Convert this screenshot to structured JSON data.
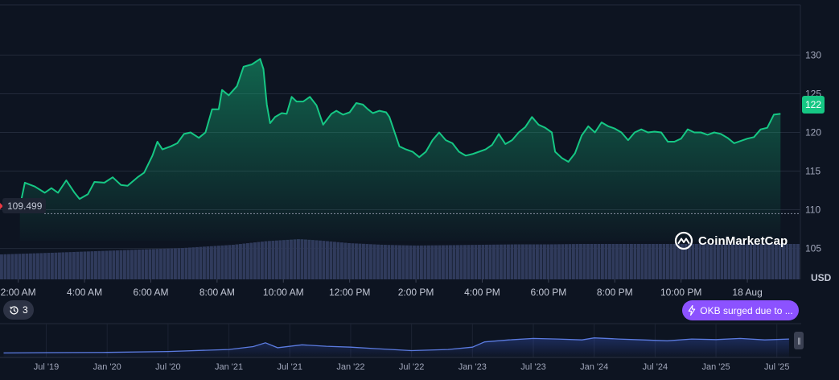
{
  "chart_data": {
    "type": "area",
    "title": "",
    "currency_label": "USD",
    "ylim": [
      101,
      136.5
    ],
    "y_ticks": [
      105,
      110,
      115,
      120,
      125,
      130
    ],
    "x_ticks": [
      "2:00 AM",
      "4:00 AM",
      "6:00 AM",
      "8:00 AM",
      "10:00 AM",
      "12:00 PM",
      "2:00 PM",
      "4:00 PM",
      "6:00 PM",
      "8:00 PM",
      "10:00 PM",
      "18 Aug"
    ],
    "x_hours": [
      2,
      4,
      6,
      8,
      10,
      12,
      14,
      16,
      18,
      20,
      22,
      24
    ],
    "xlim_hours": [
      1.45,
      25.6
    ],
    "start_price": 109.499,
    "current_price": 122,
    "current_price_label": "122",
    "start_price_label": "109.499",
    "series": [
      {
        "name": "Price (USD)",
        "points": [
          [
            2.05,
            110.4
          ],
          [
            2.2,
            113.5
          ],
          [
            2.5,
            113.0
          ],
          [
            2.8,
            112.2
          ],
          [
            3.0,
            112.8
          ],
          [
            3.2,
            112.2
          ],
          [
            3.45,
            113.8
          ],
          [
            3.7,
            112.2
          ],
          [
            3.85,
            111.4
          ],
          [
            4.1,
            112.0
          ],
          [
            4.3,
            113.6
          ],
          [
            4.6,
            113.5
          ],
          [
            4.85,
            114.2
          ],
          [
            5.1,
            113.2
          ],
          [
            5.3,
            113.1
          ],
          [
            5.6,
            114.2
          ],
          [
            5.8,
            114.8
          ],
          [
            6.05,
            117.0
          ],
          [
            6.2,
            118.8
          ],
          [
            6.35,
            117.8
          ],
          [
            6.6,
            118.2
          ],
          [
            6.8,
            118.6
          ],
          [
            7.0,
            119.8
          ],
          [
            7.2,
            120.0
          ],
          [
            7.45,
            119.3
          ],
          [
            7.65,
            120.0
          ],
          [
            7.85,
            123.0
          ],
          [
            8.05,
            123.0
          ],
          [
            8.15,
            125.5
          ],
          [
            8.35,
            124.8
          ],
          [
            8.6,
            126.0
          ],
          [
            8.8,
            128.5
          ],
          [
            9.05,
            128.8
          ],
          [
            9.3,
            129.5
          ],
          [
            9.4,
            128.2
          ],
          [
            9.5,
            123.6
          ],
          [
            9.6,
            121.2
          ],
          [
            9.75,
            122.0
          ],
          [
            9.95,
            122.5
          ],
          [
            10.1,
            122.4
          ],
          [
            10.25,
            124.6
          ],
          [
            10.4,
            124.0
          ],
          [
            10.6,
            124.0
          ],
          [
            10.8,
            124.6
          ],
          [
            11.0,
            123.5
          ],
          [
            11.2,
            121.0
          ],
          [
            11.45,
            122.4
          ],
          [
            11.6,
            122.8
          ],
          [
            11.8,
            122.3
          ],
          [
            12.0,
            122.6
          ],
          [
            12.2,
            123.8
          ],
          [
            12.4,
            123.6
          ],
          [
            12.55,
            123.0
          ],
          [
            12.7,
            122.5
          ],
          [
            12.9,
            122.8
          ],
          [
            13.1,
            122.6
          ],
          [
            13.2,
            122.0
          ],
          [
            13.5,
            118.2
          ],
          [
            13.7,
            117.8
          ],
          [
            13.9,
            117.5
          ],
          [
            14.1,
            116.8
          ],
          [
            14.3,
            117.5
          ],
          [
            14.5,
            119.0
          ],
          [
            14.7,
            120.0
          ],
          [
            14.9,
            119.0
          ],
          [
            15.1,
            118.6
          ],
          [
            15.3,
            117.5
          ],
          [
            15.5,
            117.0
          ],
          [
            15.7,
            117.2
          ],
          [
            15.9,
            117.5
          ],
          [
            16.1,
            117.8
          ],
          [
            16.3,
            118.4
          ],
          [
            16.5,
            119.8
          ],
          [
            16.7,
            118.5
          ],
          [
            16.9,
            119.0
          ],
          [
            17.1,
            120.0
          ],
          [
            17.3,
            120.7
          ],
          [
            17.5,
            122.0
          ],
          [
            17.7,
            121.0
          ],
          [
            17.9,
            120.6
          ],
          [
            18.1,
            120.0
          ],
          [
            18.2,
            117.5
          ],
          [
            18.4,
            116.7
          ],
          [
            18.6,
            116.2
          ],
          [
            18.8,
            117.3
          ],
          [
            19.0,
            119.6
          ],
          [
            19.2,
            120.8
          ],
          [
            19.4,
            120.0
          ],
          [
            19.6,
            121.3
          ],
          [
            19.8,
            120.8
          ],
          [
            20.0,
            120.5
          ],
          [
            20.2,
            120.0
          ],
          [
            20.4,
            119.0
          ],
          [
            20.6,
            120.0
          ],
          [
            20.8,
            120.4
          ],
          [
            21.0,
            120.0
          ],
          [
            21.2,
            120.1
          ],
          [
            21.4,
            120.0
          ],
          [
            21.6,
            118.8
          ],
          [
            21.8,
            118.8
          ],
          [
            22.0,
            119.2
          ],
          [
            22.2,
            120.4
          ],
          [
            22.4,
            120.0
          ],
          [
            22.6,
            120.0
          ],
          [
            22.8,
            119.7
          ],
          [
            23.0,
            120.0
          ],
          [
            23.2,
            119.8
          ],
          [
            23.4,
            119.3
          ],
          [
            23.6,
            118.6
          ],
          [
            23.8,
            118.9
          ],
          [
            24.0,
            119.2
          ],
          [
            24.2,
            119.4
          ],
          [
            24.4,
            120.4
          ],
          [
            24.6,
            120.6
          ],
          [
            24.8,
            122.3
          ],
          [
            25.0,
            122.4
          ]
        ]
      }
    ],
    "volume": {
      "name": "Volume",
      "points": [
        [
          1.5,
          0.62
        ],
        [
          3.0,
          0.66
        ],
        [
          5.0,
          0.72
        ],
        [
          7.0,
          0.78
        ],
        [
          8.5,
          0.86
        ],
        [
          9.5,
          0.95
        ],
        [
          10.5,
          1.0
        ],
        [
          11.2,
          0.96
        ],
        [
          12.0,
          0.9
        ],
        [
          13.0,
          0.86
        ],
        [
          14.0,
          0.84
        ],
        [
          15.0,
          0.85
        ],
        [
          16.0,
          0.86
        ],
        [
          17.0,
          0.87
        ],
        [
          18.0,
          0.87
        ],
        [
          19.0,
          0.88
        ],
        [
          20.0,
          0.88
        ],
        [
          21.0,
          0.88
        ],
        [
          22.0,
          0.88
        ],
        [
          23.0,
          0.88
        ],
        [
          24.0,
          0.88
        ],
        [
          25.2,
          0.88
        ]
      ]
    },
    "navigator": {
      "x_ticks": [
        "Jul '19",
        "Jan '20",
        "Jul '20",
        "Jan '21",
        "Jul '21",
        "Jan '22",
        "Jul '22",
        "Jan '23",
        "Jul '23",
        "Jan '24",
        "Jul '24",
        "Jan '25",
        "Jul '25"
      ],
      "x_years": [
        2019.5,
        2020.0,
        2020.5,
        2021.0,
        2021.5,
        2022.0,
        2022.5,
        2023.0,
        2023.5,
        2024.0,
        2024.5,
        2025.0,
        2025.5
      ],
      "xlim_years": [
        2019.12,
        2025.7
      ],
      "ylim": [
        0,
        1
      ],
      "points": [
        [
          2019.15,
          0.1
        ],
        [
          2019.5,
          0.11
        ],
        [
          2020.0,
          0.12
        ],
        [
          2020.5,
          0.15
        ],
        [
          2021.0,
          0.22
        ],
        [
          2021.2,
          0.32
        ],
        [
          2021.3,
          0.45
        ],
        [
          2021.4,
          0.28
        ],
        [
          2021.6,
          0.38
        ],
        [
          2021.8,
          0.33
        ],
        [
          2022.0,
          0.3
        ],
        [
          2022.2,
          0.25
        ],
        [
          2022.5,
          0.18
        ],
        [
          2022.8,
          0.22
        ],
        [
          2023.0,
          0.3
        ],
        [
          2023.1,
          0.48
        ],
        [
          2023.3,
          0.55
        ],
        [
          2023.5,
          0.6
        ],
        [
          2023.7,
          0.58
        ],
        [
          2023.9,
          0.55
        ],
        [
          2024.0,
          0.62
        ],
        [
          2024.2,
          0.58
        ],
        [
          2024.4,
          0.55
        ],
        [
          2024.6,
          0.52
        ],
        [
          2024.8,
          0.58
        ],
        [
          2025.0,
          0.56
        ],
        [
          2025.2,
          0.6
        ],
        [
          2025.4,
          0.55
        ],
        [
          2025.6,
          0.58
        ]
      ]
    }
  },
  "branding": {
    "logo_text": "CoinMarketCap"
  },
  "history_badge": {
    "count": "3"
  },
  "news_pill": {
    "label": "OKB surged due to ..."
  },
  "colors": {
    "line": "#16c784",
    "area_top": "#16c784",
    "grid": "#222a3a",
    "volume": "#303b5c",
    "navigator_line": "#5b7be0",
    "pill": "#8c52ff"
  }
}
